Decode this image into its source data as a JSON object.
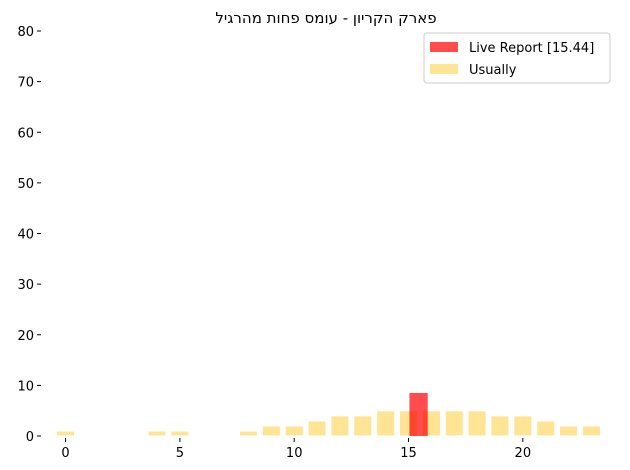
{
  "chart_data": {
    "type": "bar",
    "title": "פארק הקריון - עומס פחות מהרגיל",
    "xlabel": "",
    "ylabel": "",
    "xlim": [
      -0.9,
      23.9
    ],
    "ylim": [
      0,
      80
    ],
    "x_ticks": [
      0,
      5,
      10,
      15,
      20
    ],
    "y_ticks": [
      0,
      10,
      20,
      30,
      40,
      50,
      60,
      70,
      80
    ],
    "grid": false,
    "legend_position": "top-right",
    "series": [
      {
        "name": "Live Report [15.44]",
        "color": "#ff0000",
        "opacity": 0.7,
        "points": [
          {
            "x": 15.44,
            "y": 8.5
          }
        ]
      },
      {
        "name": "Usually",
        "color": "#ffd966",
        "opacity": 0.7,
        "points": [
          {
            "x": 0,
            "y": 1
          },
          {
            "x": 4,
            "y": 1
          },
          {
            "x": 5,
            "y": 1
          },
          {
            "x": 8,
            "y": 1
          },
          {
            "x": 9,
            "y": 2
          },
          {
            "x": 10,
            "y": 2
          },
          {
            "x": 11,
            "y": 3
          },
          {
            "x": 12,
            "y": 4
          },
          {
            "x": 13,
            "y": 4
          },
          {
            "x": 14,
            "y": 5
          },
          {
            "x": 15,
            "y": 5
          },
          {
            "x": 16,
            "y": 5
          },
          {
            "x": 17,
            "y": 5
          },
          {
            "x": 18,
            "y": 5
          },
          {
            "x": 19,
            "y": 4
          },
          {
            "x": 20,
            "y": 4
          },
          {
            "x": 21,
            "y": 3
          },
          {
            "x": 22,
            "y": 2
          },
          {
            "x": 23,
            "y": 2
          }
        ]
      }
    ]
  }
}
